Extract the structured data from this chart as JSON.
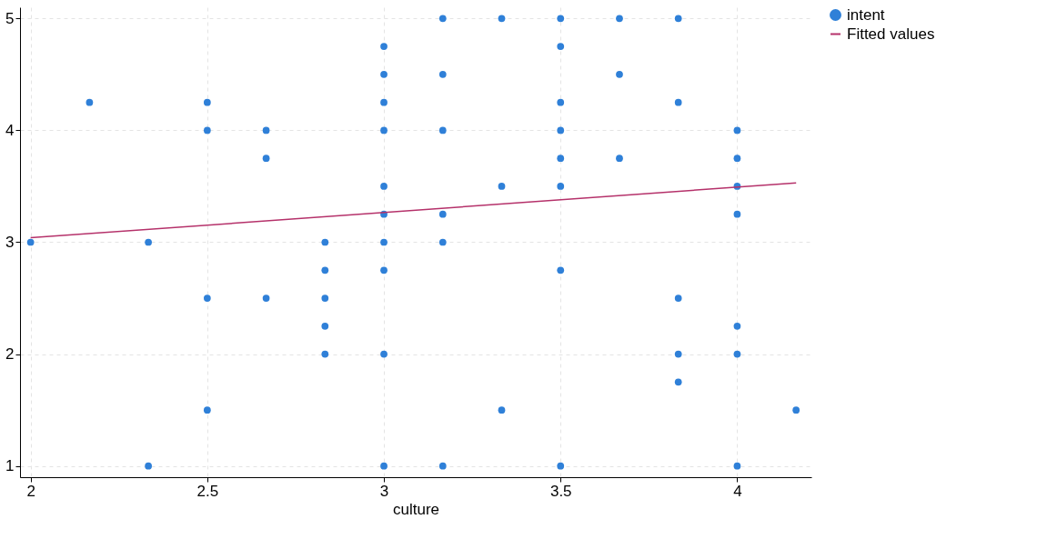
{
  "chart_data": {
    "type": "scatter",
    "xlabel": "culture",
    "xlim": [
      1.97,
      4.21
    ],
    "ylim": [
      0.9,
      5.1
    ],
    "xticks": [
      2,
      2.5,
      3,
      3.5,
      4
    ],
    "yticks": [
      1,
      2,
      3,
      4,
      5
    ],
    "grid": true,
    "legend": "right",
    "series": [
      {
        "name": "intent",
        "type": "scatter",
        "marker": "circle",
        "color": "#2f80d8",
        "x": [
          2,
          2.1667,
          2.3333,
          2.3333,
          2.5,
          2.5,
          2.5,
          2.5,
          2.6667,
          2.6667,
          2.6667,
          2.8333,
          2.8333,
          2.8333,
          2.8333,
          2.8333,
          3,
          3,
          3,
          3,
          3,
          3,
          3,
          3,
          3,
          3,
          3.1667,
          3.1667,
          3.1667,
          3.1667,
          3.1667,
          3.1667,
          3.3333,
          3.3333,
          3.3333,
          3.5,
          3.5,
          3.5,
          3.5,
          3.5,
          3.5,
          3.5,
          3.5,
          3.6667,
          3.6667,
          3.6667,
          3.8333,
          3.8333,
          3.8333,
          3.8333,
          3.8333,
          4,
          4,
          4,
          4,
          4,
          4,
          4,
          4.1667
        ],
        "values": [
          3,
          4.25,
          3,
          1,
          4.25,
          4,
          2.5,
          1.5,
          4,
          3.75,
          2.5,
          3,
          2.75,
          2.5,
          2.25,
          2,
          4.75,
          4.5,
          4.25,
          4,
          3.5,
          3.25,
          3,
          2.75,
          2,
          1,
          5,
          4.5,
          4,
          3.25,
          3,
          1,
          5,
          3.5,
          1.5,
          5,
          4.75,
          4.25,
          4,
          3.75,
          3.5,
          2.75,
          1,
          5,
          4.5,
          3.75,
          5,
          4.25,
          2.5,
          2,
          1.75,
          4,
          3.75,
          3.5,
          3.25,
          2.25,
          2,
          1,
          1.5
        ]
      },
      {
        "name": "Fitted values",
        "type": "line",
        "color": "#b5316a",
        "x": [
          2,
          4.1667
        ],
        "values": [
          3.04,
          3.53
        ]
      }
    ]
  }
}
